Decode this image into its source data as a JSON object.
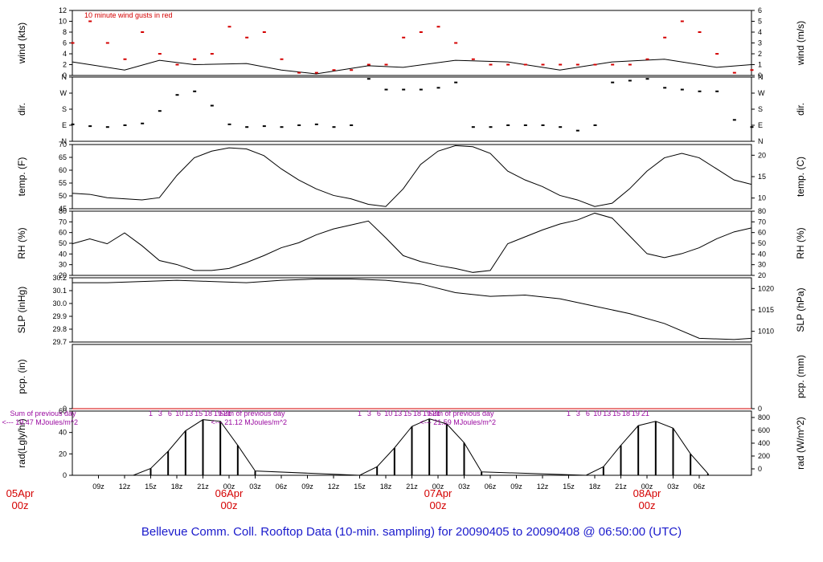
{
  "title": "Bellevue Comm. Coll. Rooftop Data (10-min. sampling) for 20090405  to  20090408 @ 06:50:00  (UTC)",
  "colors": {
    "title": "#1a1acc",
    "gust": "#d40000",
    "date_label": "#d40000",
    "note": "#9a0aa0",
    "line": "#000000"
  },
  "chart_data": [
    {
      "type": "line",
      "name": "wind",
      "ylabel_left": "wind (kts)",
      "ylabel_right": "wind (m/s)",
      "annotation": "10  minute wind gusts in red",
      "ylim": [
        0,
        12
      ],
      "left_ticks": [
        "0",
        "2",
        "4",
        "6",
        "8",
        "10",
        "12"
      ],
      "right_ticks": [
        "0",
        "1",
        "2",
        "3",
        "4",
        "5",
        "6"
      ],
      "series": [
        {
          "color": "#000000",
          "x": [
            0,
            6,
            10,
            14,
            20,
            24,
            28,
            34,
            38,
            44,
            50,
            56,
            62,
            68,
            74,
            78
          ],
          "y": [
            2.5,
            1,
            2.8,
            2,
            2.2,
            1,
            0.3,
            1.8,
            1.5,
            2.8,
            2.5,
            1,
            2.5,
            3,
            1.5,
            2
          ]
        },
        {
          "color": "#d40000",
          "type": "scatter",
          "x": [
            0,
            2,
            4,
            6,
            8,
            10,
            12,
            14,
            16,
            18,
            20,
            22,
            24,
            26,
            28,
            30,
            32,
            34,
            36,
            38,
            40,
            42,
            44,
            46,
            48,
            50,
            52,
            54,
            56,
            58,
            60,
            62,
            64,
            66,
            68,
            70,
            72,
            74,
            76,
            78
          ],
          "y": [
            6,
            10,
            6,
            3,
            8,
            4,
            2,
            3,
            4,
            9,
            7,
            8,
            3,
            0.5,
            0.5,
            1,
            1,
            2,
            2,
            7,
            8,
            9,
            6,
            3,
            2,
            2,
            2,
            2,
            2,
            2,
            2,
            2,
            2,
            3,
            7,
            10,
            8,
            4,
            0.5,
            1
          ]
        }
      ]
    },
    {
      "type": "scatter",
      "name": "direction",
      "ylabel_left": "dir.",
      "ylabel_right": "dir.",
      "ylim": [
        0,
        360
      ],
      "left_ticks": [
        "N",
        "E",
        "S",
        "W",
        "N"
      ],
      "right_ticks": [
        "N",
        "E",
        "S",
        "W",
        "N"
      ],
      "series": [
        {
          "color": "#000000",
          "x": [
            0,
            2,
            4,
            6,
            8,
            10,
            12,
            14,
            16,
            18,
            20,
            22,
            24,
            26,
            28,
            30,
            32,
            34,
            36,
            38,
            40,
            42,
            44,
            46,
            48,
            50,
            52,
            54,
            56,
            58,
            60,
            62,
            64,
            66,
            68,
            70,
            72,
            74,
            76,
            78
          ],
          "y": [
            95,
            85,
            80,
            90,
            100,
            170,
            260,
            280,
            200,
            95,
            80,
            85,
            80,
            90,
            95,
            80,
            90,
            350,
            290,
            290,
            290,
            300,
            330,
            80,
            80,
            90,
            90,
            90,
            80,
            60,
            90,
            330,
            340,
            350,
            300,
            290,
            280,
            280,
            120,
            80
          ]
        }
      ]
    },
    {
      "type": "line",
      "name": "temperature",
      "ylabel_left": "temp. (F)",
      "ylabel_right": "temp. (C)",
      "ylim": [
        43,
        72
      ],
      "left_ticks": [
        "45",
        "50",
        "55",
        "60",
        "65",
        "70"
      ],
      "right_ticks": [
        "10",
        "15",
        "20"
      ],
      "series": [
        {
          "color": "#000000",
          "x": [
            0,
            2,
            4,
            6,
            8,
            10,
            12,
            14,
            16,
            18,
            20,
            22,
            24,
            26,
            28,
            30,
            32,
            34,
            36,
            38,
            40,
            42,
            44,
            46,
            48,
            50,
            52,
            54,
            56,
            58,
            60,
            62,
            64,
            66,
            68,
            70,
            72,
            74,
            76,
            78
          ],
          "y": [
            50,
            49.5,
            48,
            47.5,
            47,
            48,
            58,
            66,
            69,
            70.5,
            70,
            67,
            61,
            56,
            52,
            49,
            47.5,
            45,
            44,
            52,
            63,
            69,
            71.5,
            71,
            68,
            60,
            56,
            53,
            49,
            47,
            44,
            45.5,
            52,
            60,
            66,
            68,
            66,
            61,
            56,
            54
          ]
        }
      ]
    },
    {
      "type": "line",
      "name": "humidity",
      "ylabel_left": "RH (%)",
      "ylabel_right": "RH (%)",
      "ylim": [
        20,
        85
      ],
      "left_ticks": [
        "20",
        "30",
        "40",
        "50",
        "60",
        "70",
        "80"
      ],
      "right_ticks": [
        "20",
        "30",
        "40",
        "50",
        "60",
        "70",
        "80"
      ],
      "series": [
        {
          "color": "#000000",
          "x": [
            0,
            2,
            4,
            6,
            8,
            10,
            12,
            14,
            16,
            18,
            20,
            22,
            24,
            26,
            28,
            30,
            32,
            34,
            36,
            38,
            40,
            42,
            44,
            46,
            48,
            50,
            52,
            54,
            56,
            58,
            60,
            62,
            64,
            66,
            68,
            70,
            72,
            74,
            76,
            78
          ],
          "y": [
            52,
            57,
            52,
            63,
            50,
            35,
            31,
            25,
            25,
            27,
            33,
            40,
            48,
            53,
            61,
            67,
            71,
            75,
            58,
            40,
            34,
            30,
            27,
            23,
            25,
            52,
            59,
            66,
            72,
            76,
            83,
            78,
            60,
            42,
            38,
            42,
            48,
            57,
            64,
            68
          ]
        }
      ]
    },
    {
      "type": "line",
      "name": "pressure",
      "ylabel_left": "SLP (inHg)",
      "ylabel_right": "SLP (hPa)",
      "ylim": [
        29.7,
        30.22
      ],
      "left_ticks": [
        "29.7",
        "29.8",
        "29.9",
        "30.0",
        "30.1",
        "30.2"
      ],
      "right_ticks": [
        "1010",
        "1015",
        "1020"
      ],
      "series": [
        {
          "color": "#000000",
          "x": [
            0,
            4,
            8,
            12,
            16,
            20,
            24,
            28,
            32,
            36,
            40,
            44,
            48,
            52,
            56,
            60,
            64,
            68,
            72,
            76,
            78
          ],
          "y": [
            30.18,
            30.18,
            30.19,
            30.2,
            30.19,
            30.18,
            30.2,
            30.21,
            30.21,
            30.2,
            30.17,
            30.1,
            30.07,
            30.08,
            30.05,
            29.99,
            29.93,
            29.85,
            29.73,
            29.72,
            29.73
          ]
        }
      ]
    },
    {
      "type": "line",
      "name": "precipitation",
      "ylabel_left": "pcp. (in)",
      "ylabel_right": "pcp. (mm)",
      "ylim": [
        0,
        1
      ],
      "left_ticks": [
        "0"
      ],
      "right_ticks": [
        "0"
      ],
      "series": [
        {
          "color": "#d40000",
          "x": [
            0,
            78
          ],
          "y": [
            0,
            0
          ]
        }
      ]
    },
    {
      "type": "bar",
      "name": "radiation",
      "ylabel_left": "rad(Lgly/hr)",
      "ylabel_right": "rad (W/m^2)",
      "ylim": [
        0,
        75
      ],
      "left_ticks": [
        "0",
        "20",
        "40",
        "60"
      ],
      "right_ticks": [
        "0",
        "200",
        "400",
        "600",
        "800"
      ],
      "daily_notes": [
        {
          "line1": "Sum of previous day",
          "line2": "<--- 19.47 MJoules/m^2"
        },
        {
          "line1": "Sum of previous day",
          "line2": "<--- 21.12 MJoules/m^2"
        },
        {
          "line1": "Sum of previous day",
          "line2": "<--- 21.59 MJoules/m^2"
        }
      ],
      "hour_labels": [
        "1",
        "3",
        "6",
        "10",
        "13",
        "15",
        "18",
        "19",
        "21"
      ],
      "series": [
        {
          "color": "#000000",
          "x": [
            7,
            9,
            11,
            13,
            15,
            17,
            19,
            21,
            33,
            35,
            37,
            39,
            41,
            43,
            45,
            47,
            59,
            61,
            63,
            65,
            67,
            69,
            71,
            73
          ],
          "y": [
            0,
            8,
            28,
            52,
            65,
            63,
            35,
            5,
            0,
            10,
            32,
            57,
            66,
            60,
            38,
            4,
            0,
            10,
            35,
            58,
            63,
            55,
            25,
            2
          ]
        }
      ]
    }
  ],
  "x_axis": {
    "xlabel": "",
    "xlim": [
      0,
      78
    ],
    "hour_ticks": [
      "09z",
      "12z",
      "15z",
      "18z",
      "21z",
      "00z",
      "03z",
      "06z",
      "09z",
      "12z",
      "15z",
      "18z",
      "21z",
      "00z",
      "03z",
      "06z",
      "09z",
      "12z",
      "15z",
      "18z",
      "21z",
      "00z",
      "03z",
      "06z"
    ],
    "hour_tick_x": [
      3,
      6,
      9,
      12,
      15,
      18,
      21,
      24,
      27,
      30,
      33,
      36,
      39,
      42,
      45,
      48,
      51,
      54,
      57,
      60,
      63,
      66,
      69,
      72
    ],
    "date_labels": [
      {
        "date": "05Apr",
        "time": "00z",
        "x": -6
      },
      {
        "date": "06Apr",
        "time": "00z",
        "x": 18
      },
      {
        "date": "07Apr",
        "time": "00z",
        "x": 42
      },
      {
        "date": "08Apr",
        "time": "00z",
        "x": 66
      }
    ]
  }
}
